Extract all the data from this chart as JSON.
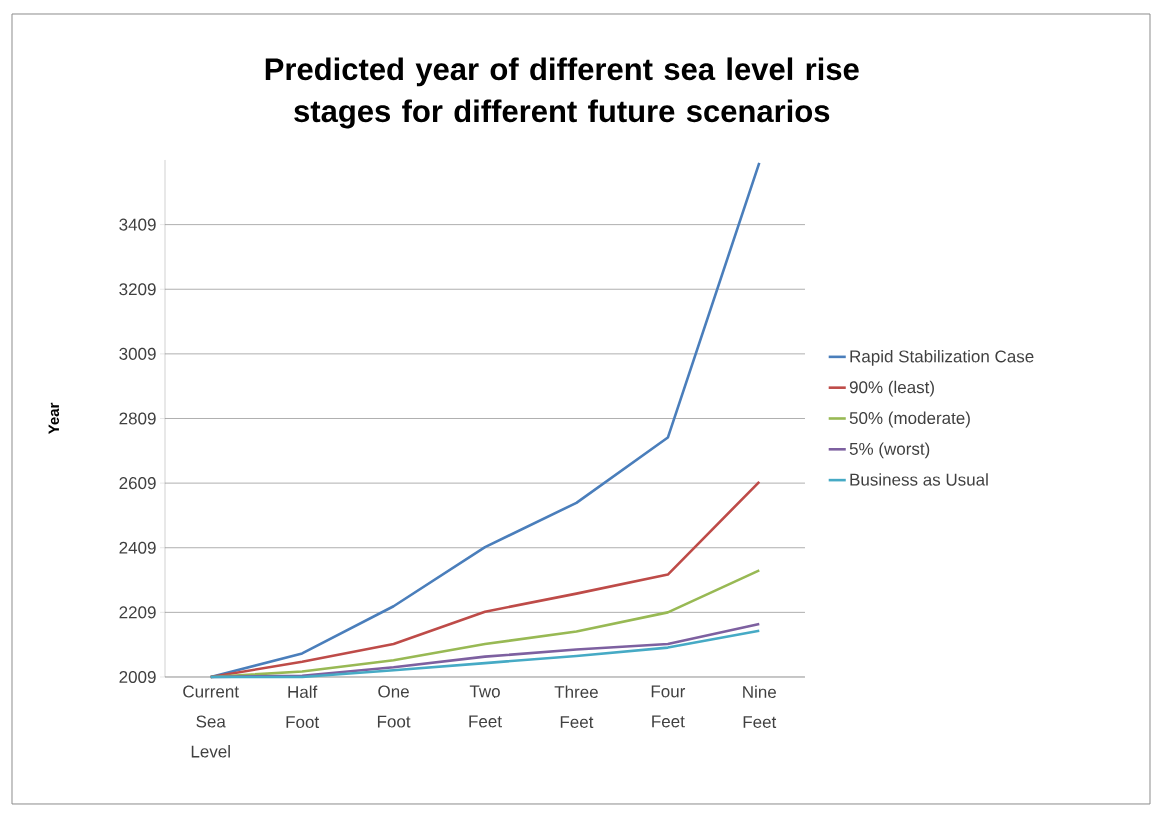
{
  "chart_data": {
    "type": "line",
    "title": "Predicted year of different sea level rise stages for different future scenarios",
    "ylabel": "Year",
    "categories": [
      "Current Sea Level",
      "Half Foot",
      "One Foot",
      "Two Feet",
      "Three Feet",
      "Four Feet",
      "Nine Feet"
    ],
    "series": [
      {
        "name": "Rapid Stabilization Case",
        "color": "#4a7ebb",
        "values": [
          2009,
          2082,
          2228,
          2411,
          2548,
          2750,
          3600
        ]
      },
      {
        "name": "90% (least)",
        "color": "#be4b48",
        "values": [
          2009,
          2056,
          2111,
          2211,
          2267,
          2326,
          2613
        ]
      },
      {
        "name": "50% (moderate)",
        "color": "#98b954",
        "values": [
          2009,
          2026,
          2061,
          2111,
          2150,
          2209,
          2339
        ]
      },
      {
        "name": "5% (worst)",
        "color": "#7d60a0",
        "values": [
          2009,
          2013,
          2039,
          2072,
          2094,
          2111,
          2173
        ]
      },
      {
        "name": "Business as Usual",
        "color": "#46aac5",
        "values": [
          2009,
          2009,
          2030,
          2052,
          2074,
          2100,
          2152
        ]
      }
    ],
    "ylim": [
      2009,
      3609
    ],
    "yticks": [
      2009,
      2209,
      2409,
      2609,
      2809,
      3009,
      3209,
      3409
    ],
    "grid": "y",
    "legend": "right",
    "marker": "none",
    "line_style": "solid"
  }
}
